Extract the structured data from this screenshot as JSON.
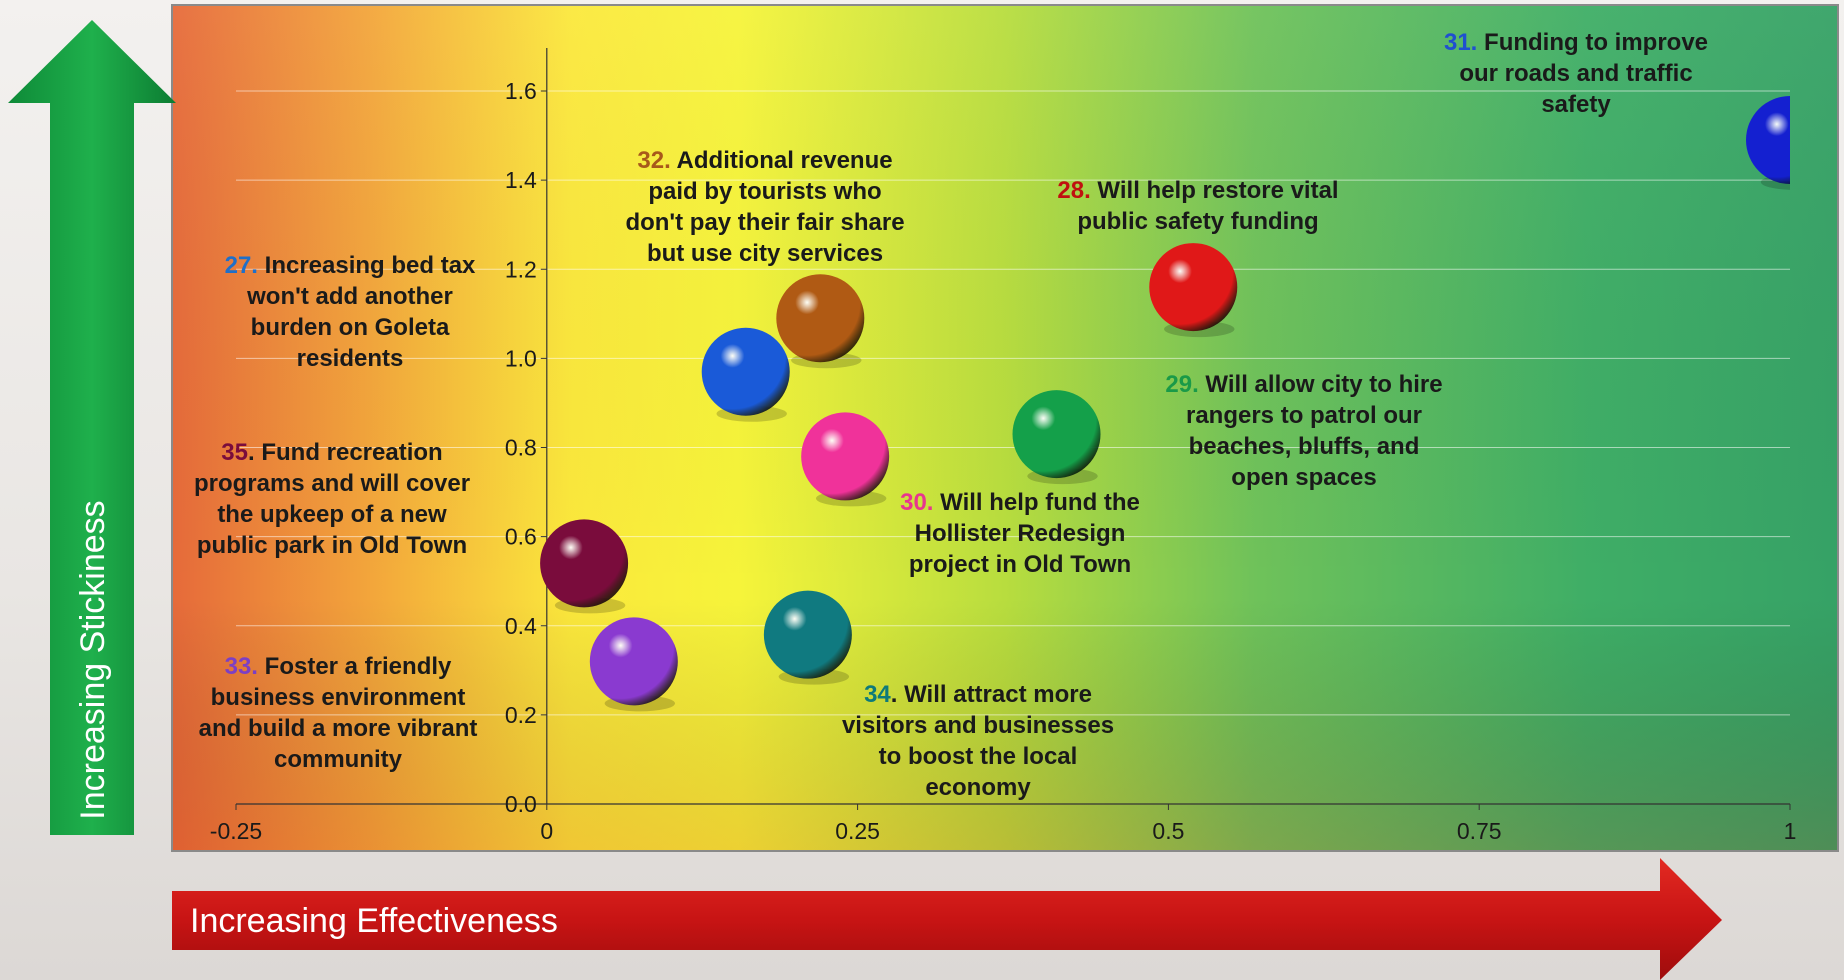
{
  "chart_data": {
    "type": "scatter",
    "x_axis": {
      "title": "Increasing Effectiveness",
      "min": -0.25,
      "max": 1,
      "ticks": [
        "-0.25",
        "0",
        "0.25",
        "0.5",
        "0.75",
        "1"
      ]
    },
    "y_axis": {
      "title": "Increasing Stickiness",
      "min": 0.0,
      "max": 1.6,
      "ticks": [
        "0.0",
        "0.2",
        "0.4",
        "0.6",
        "0.8",
        "1.0",
        "1.2",
        "1.4",
        "1.6"
      ]
    },
    "grid": "horizontal",
    "points": [
      {
        "id": "27",
        "number": "27.",
        "text": [
          "Increasing bed tax",
          "won't add another",
          "burden on Goleta",
          "residents"
        ],
        "x": 0.16,
        "y": 0.97,
        "color": "#1a5ad8",
        "label_color": "#1f6fc9"
      },
      {
        "id": "28",
        "number": "28.",
        "text": [
          "Will help restore vital",
          "public safety funding"
        ],
        "x": 0.52,
        "y": 1.16,
        "color": "#e01818",
        "label_color": "#c01010"
      },
      {
        "id": "29",
        "number": "29.",
        "text": [
          "Will allow city to hire",
          "rangers to patrol our",
          "beaches, bluffs, and",
          "open spaces"
        ],
        "x": 0.41,
        "y": 0.83,
        "color": "#14a04a",
        "label_color": "#1a9a48"
      },
      {
        "id": "30",
        "number": "30.",
        "text": [
          "Will help fund the",
          "Hollister Redesign",
          "project in Old Town"
        ],
        "x": 0.24,
        "y": 0.78,
        "color": "#f0329a",
        "label_color": "#e8358f"
      },
      {
        "id": "31",
        "number": "31.",
        "text": [
          "Funding to improve",
          "our roads and traffic",
          "safety"
        ],
        "x": 1.0,
        "y": 1.49,
        "color": "#1420d0",
        "label_color": "#1f4fd0"
      },
      {
        "id": "32",
        "number": "32.",
        "text": [
          "Additional revenue",
          "paid by tourists who",
          "don't pay their fair share",
          "but use city services"
        ],
        "x": 0.22,
        "y": 1.09,
        "color": "#b05a14",
        "label_color": "#a8581a"
      },
      {
        "id": "33",
        "number": "33.",
        "text": [
          "Foster a friendly",
          "business environment",
          "and build a more vibrant",
          "community"
        ],
        "x": 0.07,
        "y": 0.32,
        "color": "#8a3ad0",
        "label_color": "#7c3fc4"
      },
      {
        "id": "34",
        "number": "34",
        "text": [
          ". Will attract more",
          "visitors and businesses",
          "to boost the local",
          "economy"
        ],
        "x": 0.21,
        "y": 0.38,
        "color": "#107a80",
        "label_color": "#0e7a7a"
      },
      {
        "id": "35",
        "number": "35",
        "text": [
          ". Fund recreation",
          "programs and will cover",
          "the upkeep of a new",
          "public park in Old Town"
        ],
        "x": 0.03,
        "y": 0.54,
        "color": "#7a0c3c",
        "label_color": "#7a0c3c"
      }
    ]
  }
}
